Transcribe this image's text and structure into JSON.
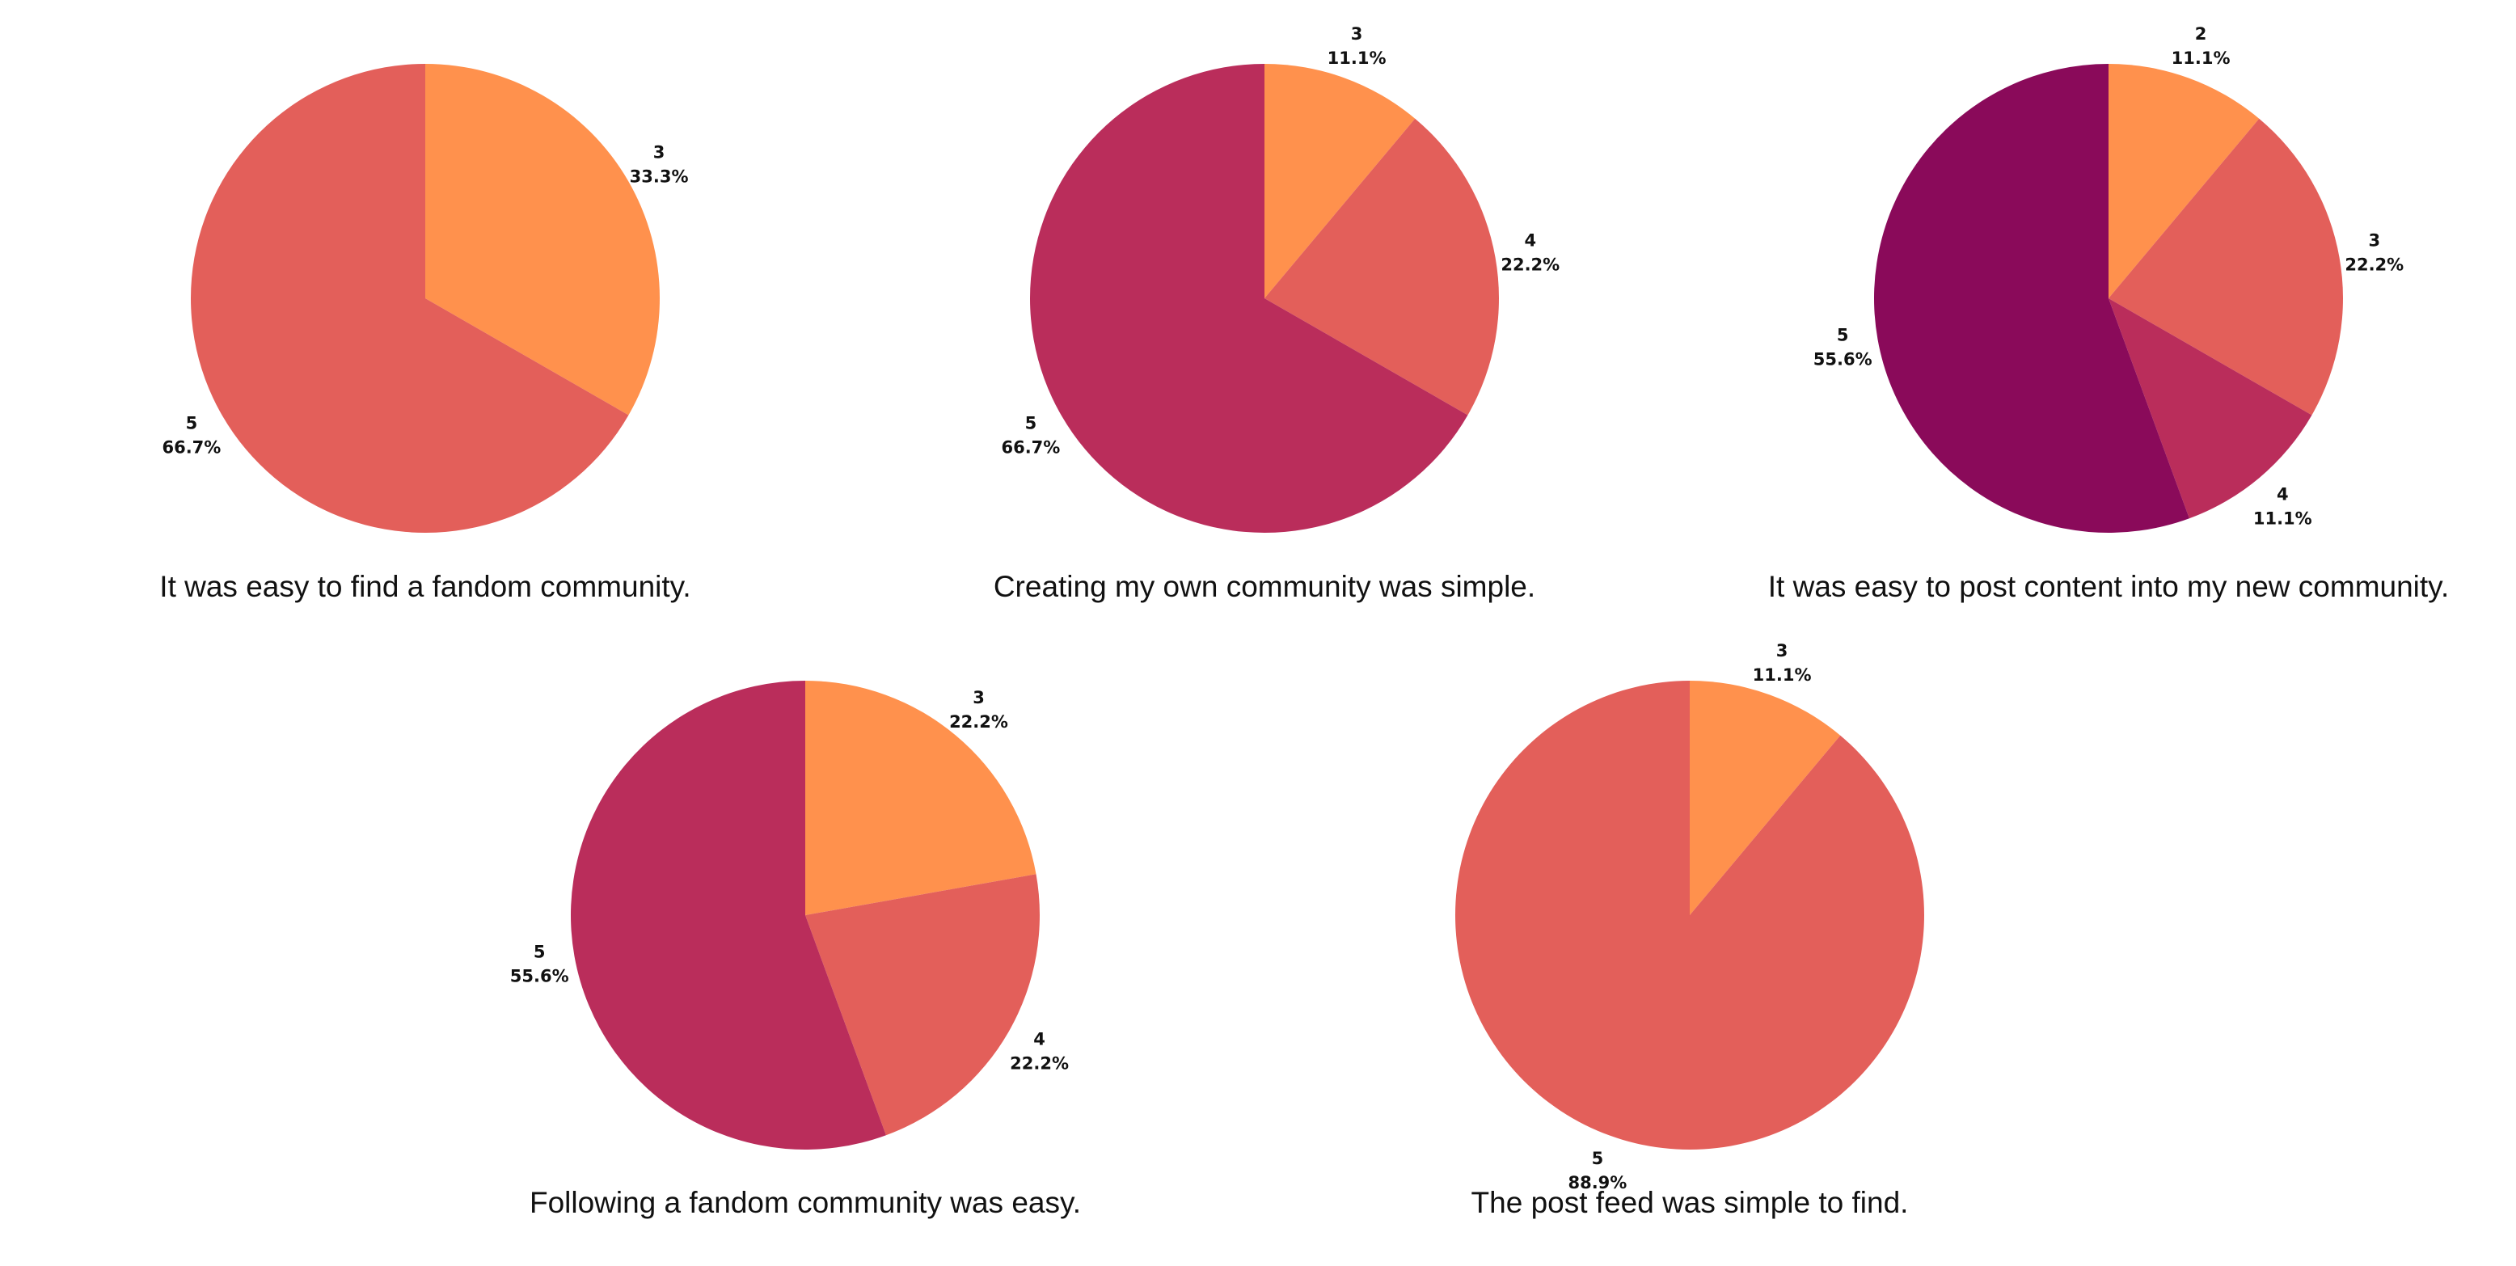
{
  "chart_data": [
    {
      "type": "pie",
      "title": "It was easy to find a fandom community.",
      "slices": [
        {
          "label": "3",
          "value": 33.3,
          "pct_label": "33.3%",
          "color": "#FF914D"
        },
        {
          "label": "5",
          "value": 66.7,
          "pct_label": "66.7%",
          "color": "#E35F5A"
        }
      ]
    },
    {
      "type": "pie",
      "title": "Creating my own community was simple.",
      "slices": [
        {
          "label": "3",
          "value": 11.1,
          "pct_label": "11.1%",
          "color": "#FF914D"
        },
        {
          "label": "4",
          "value": 22.2,
          "pct_label": "22.2%",
          "color": "#E35F5A"
        },
        {
          "label": "5",
          "value": 66.7,
          "pct_label": "66.7%",
          "color": "#BA2D5B"
        }
      ]
    },
    {
      "type": "pie",
      "title": "It was easy to post content into my new community.",
      "slices": [
        {
          "label": "2",
          "value": 11.1,
          "pct_label": "11.1%",
          "color": "#FF914D"
        },
        {
          "label": "3",
          "value": 22.2,
          "pct_label": "22.2%",
          "color": "#E35F5A"
        },
        {
          "label": "4",
          "value": 11.1,
          "pct_label": "11.1%",
          "color": "#BA2D5B"
        },
        {
          "label": "5",
          "value": 55.6,
          "pct_label": "55.6%",
          "color": "#8A0A5A"
        }
      ]
    },
    {
      "type": "pie",
      "title": "Following a fandom community was easy.",
      "slices": [
        {
          "label": "3",
          "value": 22.2,
          "pct_label": "22.2%",
          "color": "#FF914D"
        },
        {
          "label": "4",
          "value": 22.2,
          "pct_label": "22.2%",
          "color": "#E35F5A"
        },
        {
          "label": "5",
          "value": 55.6,
          "pct_label": "55.6%",
          "color": "#BA2D5B"
        }
      ]
    },
    {
      "type": "pie",
      "title": "The post feed was simple to find.",
      "slices": [
        {
          "label": "3",
          "value": 11.1,
          "pct_label": "11.1%",
          "color": "#FF914D"
        },
        {
          "label": "5",
          "value": 88.9,
          "pct_label": "88.9%",
          "color": "#E35F5A"
        }
      ]
    }
  ]
}
